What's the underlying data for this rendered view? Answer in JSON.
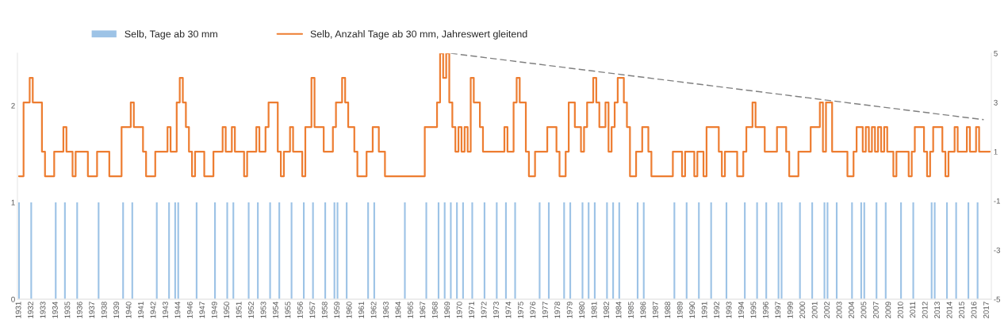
{
  "chart_data": {
    "type": "bar",
    "categories": [
      "1931",
      null,
      null,
      null,
      "1932",
      null,
      null,
      null,
      "1933",
      null,
      null,
      null,
      "1934",
      null,
      null,
      null,
      "1935",
      null,
      null,
      null,
      "1936",
      null,
      null,
      null,
      "1937",
      null,
      null,
      null,
      "1938",
      null,
      null,
      null,
      "1939",
      null,
      null,
      null,
      "1940",
      null,
      null,
      null,
      "1941",
      null,
      null,
      null,
      "1942",
      null,
      null,
      null,
      "1943",
      null,
      null,
      null,
      "1944",
      null,
      null,
      null,
      "1946",
      null,
      null,
      null,
      "1947",
      null,
      null,
      null,
      "1949",
      null,
      null,
      null,
      "1950",
      null,
      null,
      null,
      "1951",
      null,
      null,
      null,
      "1952",
      null,
      null,
      null,
      "1953",
      null,
      null,
      null,
      "1954",
      null,
      null,
      null,
      "1955",
      null,
      null,
      null,
      "1956",
      null,
      null,
      null,
      "1957",
      null,
      null,
      null,
      "1958",
      null,
      null,
      null,
      "1959",
      null,
      null,
      null,
      "1960",
      null,
      null,
      null,
      "1961",
      null,
      null,
      null,
      "1962",
      null,
      null,
      null,
      "1963",
      null,
      null,
      null,
      "1964",
      null,
      null,
      null,
      "1965",
      null,
      null,
      null,
      "1967",
      null,
      null,
      null,
      "1968",
      null,
      null,
      null,
      "1969",
      null,
      null,
      null,
      "1970",
      null,
      null,
      null,
      "1971",
      null,
      null,
      null,
      "1972",
      null,
      null,
      null,
      "1973",
      null,
      null,
      null,
      "1974",
      null,
      null,
      null,
      "1975",
      null,
      null,
      null,
      "1976",
      null,
      null,
      null,
      "1977",
      null,
      null,
      null,
      "1978",
      null,
      null,
      null,
      "1979",
      null,
      null,
      null,
      "1980",
      null,
      null,
      null,
      "1981",
      null,
      null,
      null,
      "1982",
      null,
      null,
      null,
      "1984",
      null,
      null,
      null,
      "1985",
      null,
      null,
      null,
      "1986",
      null,
      null,
      null,
      "1987",
      null,
      null,
      null,
      "1988",
      null,
      null,
      null,
      "1989",
      null,
      null,
      null,
      "1990",
      null,
      null,
      null,
      "1991",
      null,
      null,
      null,
      "1992",
      null,
      null,
      null,
      "1993",
      null,
      null,
      null,
      "1994",
      null,
      null,
      null,
      "1995",
      null,
      null,
      null,
      "1996",
      null,
      null,
      null,
      "1997",
      null,
      null,
      null,
      "1999",
      null,
      null,
      null,
      "2000",
      null,
      null,
      null,
      "2001",
      null,
      null,
      null,
      "2002",
      null,
      null,
      null,
      "2003",
      null,
      null,
      null,
      "2004",
      null,
      null,
      null,
      "2005",
      null,
      null,
      null,
      "2007",
      null,
      null,
      null,
      "2009",
      null,
      null,
      null,
      "2010",
      null,
      null,
      null,
      "2011",
      null,
      null,
      null,
      "2012",
      null,
      null,
      null,
      "2013",
      null,
      null,
      null,
      "2014",
      null,
      null,
      null,
      "2015",
      null,
      null,
      null,
      "2016",
      null,
      null,
      null,
      "2017",
      null
    ],
    "series": [
      {
        "name": "Selb, Tage ab 30 mm",
        "color": "#9dc3e6",
        "values": [
          1,
          null,
          null,
          null,
          1,
          null,
          null,
          null,
          null,
          null,
          null,
          null,
          1,
          null,
          null,
          1,
          null,
          null,
          null,
          1,
          null,
          null,
          null,
          null,
          null,
          null,
          1,
          null,
          null,
          null,
          null,
          null,
          null,
          null,
          1,
          null,
          null,
          1,
          null,
          null,
          null,
          null,
          null,
          null,
          null,
          1,
          null,
          null,
          null,
          1,
          null,
          1,
          1,
          null,
          null,
          null,
          null,
          null,
          1,
          null,
          null,
          null,
          null,
          null,
          1,
          null,
          null,
          null,
          1,
          null,
          1,
          null,
          null,
          null,
          null,
          1,
          null,
          null,
          1,
          null,
          null,
          null,
          1,
          null,
          null,
          1,
          null,
          null,
          null,
          1,
          null,
          null,
          null,
          1,
          null,
          null,
          1,
          null,
          null,
          null,
          1,
          null,
          null,
          1,
          1,
          null,
          null,
          1,
          null,
          null,
          null,
          null,
          null,
          null,
          1,
          null,
          1,
          null,
          null,
          null,
          null,
          null,
          null,
          null,
          null,
          null,
          1,
          null,
          null,
          null,
          null,
          null,
          null,
          1,
          null,
          null,
          null,
          1,
          null,
          1,
          null,
          1,
          null,
          1,
          null,
          1,
          null,
          null,
          1,
          null,
          null,
          null,
          1,
          null,
          null,
          null,
          1,
          null,
          null,
          1,
          null,
          null,
          1,
          null,
          null,
          null,
          null,
          null,
          null,
          null,
          1,
          null,
          null,
          1,
          null,
          null,
          null,
          null,
          1,
          null,
          1,
          null,
          null,
          null,
          1,
          null,
          1,
          null,
          1,
          null,
          null,
          null,
          1,
          null,
          1,
          null,
          1,
          null,
          null,
          null,
          null,
          null,
          1,
          null,
          1,
          null,
          null,
          null,
          null,
          null,
          null,
          null,
          null,
          null,
          1,
          null,
          null,
          null,
          1,
          null,
          null,
          null,
          1,
          null,
          null,
          null,
          1,
          null,
          null,
          null,
          null,
          1,
          null,
          null,
          null,
          null,
          null,
          1,
          null,
          null,
          null,
          1,
          null,
          null,
          1,
          null,
          null,
          null,
          1,
          1,
          null,
          null,
          null,
          null,
          null,
          1,
          null,
          null,
          null,
          1,
          null,
          null,
          null,
          1,
          1,
          null,
          null,
          1,
          null,
          null,
          null,
          null,
          1,
          null,
          null,
          1,
          1,
          null,
          null,
          null,
          1,
          null,
          null,
          1,
          null,
          null,
          null,
          null,
          1,
          null,
          null,
          null,
          1,
          null,
          null,
          null,
          null,
          null,
          1,
          1,
          null,
          null,
          null,
          1,
          null,
          null,
          1,
          null,
          null,
          null,
          1,
          null,
          null,
          1,
          null,
          null,
          null,
          null
        ]
      },
      {
        "type": "step",
        "name": "Selb, Anzahl Tage ab 30 mm, Jahreswert gleitend",
        "axis": "y2",
        "color": "#ed7d31",
        "values": [
          0,
          0,
          3,
          3,
          4,
          3,
          3,
          3,
          1,
          0,
          0,
          0,
          1,
          1,
          1,
          2,
          1,
          1,
          0,
          1,
          1,
          1,
          1,
          0,
          0,
          0,
          1,
          1,
          1,
          1,
          0,
          0,
          0,
          0,
          2,
          2,
          2,
          3,
          2,
          2,
          2,
          1,
          0,
          0,
          0,
          1,
          1,
          1,
          1,
          2,
          1,
          1,
          3,
          4,
          3,
          2,
          1,
          0,
          1,
          1,
          1,
          0,
          0,
          0,
          1,
          1,
          1,
          2,
          1,
          1,
          2,
          1,
          1,
          1,
          0,
          1,
          1,
          1,
          2,
          1,
          1,
          2,
          3,
          3,
          3,
          1,
          0,
          1,
          1,
          2,
          1,
          1,
          1,
          0,
          2,
          2,
          4,
          2,
          2,
          2,
          1,
          1,
          1,
          2,
          3,
          3,
          4,
          3,
          2,
          2,
          1,
          0,
          0,
          0,
          1,
          1,
          2,
          2,
          1,
          1,
          0,
          0,
          0,
          0,
          0,
          0,
          0,
          0,
          0,
          0,
          0,
          0,
          0,
          2,
          2,
          2,
          2,
          3,
          5,
          4,
          5,
          3,
          2,
          1,
          2,
          1,
          2,
          1,
          4,
          3,
          3,
          2,
          1,
          1,
          1,
          1,
          1,
          1,
          1,
          2,
          1,
          1,
          3,
          4,
          3,
          3,
          1,
          0,
          0,
          1,
          1,
          1,
          1,
          2,
          2,
          2,
          1,
          0,
          0,
          1,
          3,
          3,
          2,
          2,
          1,
          2,
          3,
          3,
          4,
          3,
          2,
          2,
          3,
          1,
          2,
          3,
          4,
          4,
          3,
          2,
          0,
          0,
          1,
          1,
          2,
          2,
          1,
          0,
          0,
          0,
          0,
          0,
          0,
          0,
          1,
          1,
          1,
          0,
          1,
          1,
          1,
          0,
          1,
          1,
          0,
          2,
          2,
          2,
          2,
          1,
          0,
          1,
          1,
          1,
          1,
          0,
          0,
          1,
          2,
          2,
          3,
          2,
          2,
          2,
          1,
          1,
          1,
          1,
          2,
          2,
          2,
          1,
          0,
          0,
          0,
          1,
          1,
          1,
          1,
          2,
          2,
          2,
          3,
          1,
          3,
          3,
          1,
          1,
          1,
          1,
          1,
          0,
          0,
          1,
          2,
          2,
          1,
          2,
          1,
          2,
          1,
          2,
          1,
          2,
          1,
          1,
          0,
          1,
          1,
          1,
          1,
          0,
          1,
          2,
          2,
          2,
          1,
          0,
          1,
          2,
          2,
          2,
          1,
          0,
          1,
          1,
          2,
          1,
          1,
          1,
          2,
          1,
          1,
          2,
          1,
          1,
          1,
          1
        ]
      },
      {
        "type": "line",
        "axis": "y2",
        "color": "#7f7f7f",
        "line_style": "dashed",
        "values": [
          null,
          null,
          null,
          null,
          null,
          null,
          null,
          null,
          null,
          null,
          null,
          null,
          null,
          null,
          null,
          null,
          null,
          null,
          null,
          null,
          null,
          null,
          null,
          null,
          null,
          null,
          null,
          null,
          null,
          null,
          null,
          null,
          null,
          null,
          null,
          null,
          null,
          null,
          null,
          null,
          null,
          null,
          null,
          null,
          null,
          null,
          null,
          null,
          null,
          null,
          null,
          null,
          null,
          null,
          null,
          null,
          null,
          null,
          null,
          null,
          null,
          null,
          null,
          null,
          null,
          null,
          null,
          null,
          null,
          null,
          null,
          null,
          null,
          null,
          null,
          null,
          null,
          null,
          null,
          null,
          null,
          null,
          null,
          null,
          null,
          null,
          null,
          null,
          null,
          null,
          null,
          null,
          null,
          null,
          null,
          null,
          null,
          null,
          null,
          null,
          null,
          null,
          null,
          null,
          null,
          null,
          null,
          null,
          null,
          null,
          null,
          null,
          null,
          null,
          null,
          null,
          null,
          null,
          null,
          null,
          null,
          null,
          null,
          null,
          null,
          null,
          null,
          null,
          null,
          null,
          null,
          null,
          null,
          null,
          null,
          null,
          null,
          null,
          null,
          null,
          null,
          5,
          null,
          null,
          null,
          null,
          null,
          null,
          null,
          null,
          null,
          null,
          null,
          null,
          null,
          null,
          null,
          null,
          null,
          null,
          null,
          null,
          null,
          null,
          null,
          null,
          null,
          null,
          null,
          null,
          null,
          null,
          null,
          null,
          null,
          null,
          null,
          null,
          null,
          null,
          null,
          null,
          null,
          null,
          null,
          null,
          null,
          null,
          null,
          null,
          null,
          null,
          null,
          null,
          null,
          null,
          null,
          null,
          null,
          null,
          null,
          null,
          null,
          null,
          null,
          null,
          null,
          null,
          null,
          null,
          null,
          null,
          null,
          null,
          null,
          null,
          null,
          null,
          null,
          null,
          null,
          null,
          null,
          null,
          null,
          null,
          null,
          null,
          null,
          null,
          null,
          null,
          null,
          null,
          null,
          null,
          null,
          null,
          null,
          null,
          null,
          null,
          null,
          null,
          null,
          null,
          null,
          null,
          null,
          null,
          null,
          null,
          null,
          null,
          null,
          null,
          null,
          null,
          null,
          null,
          null,
          null,
          null,
          null,
          null,
          null,
          null,
          null,
          null,
          null,
          null,
          null,
          null,
          null,
          null,
          null,
          null,
          null,
          null,
          null,
          null,
          null,
          null,
          null,
          null,
          null,
          null,
          null,
          null,
          null,
          null,
          null,
          null,
          null,
          null,
          null,
          null,
          null,
          null,
          null,
          null,
          null,
          null,
          null,
          null,
          null,
          null,
          null,
          null,
          null,
          null,
          null,
          null,
          null,
          null,
          2.3,
          null,
          null
        ]
      }
    ],
    "ylim": [
      0,
      2.54
    ],
    "yticks": [
      0,
      1,
      2
    ],
    "y2lim": [
      -5,
      5
    ],
    "y2ticks": [
      5,
      3,
      1,
      -1,
      -3,
      -5
    ],
    "legend": "top"
  }
}
